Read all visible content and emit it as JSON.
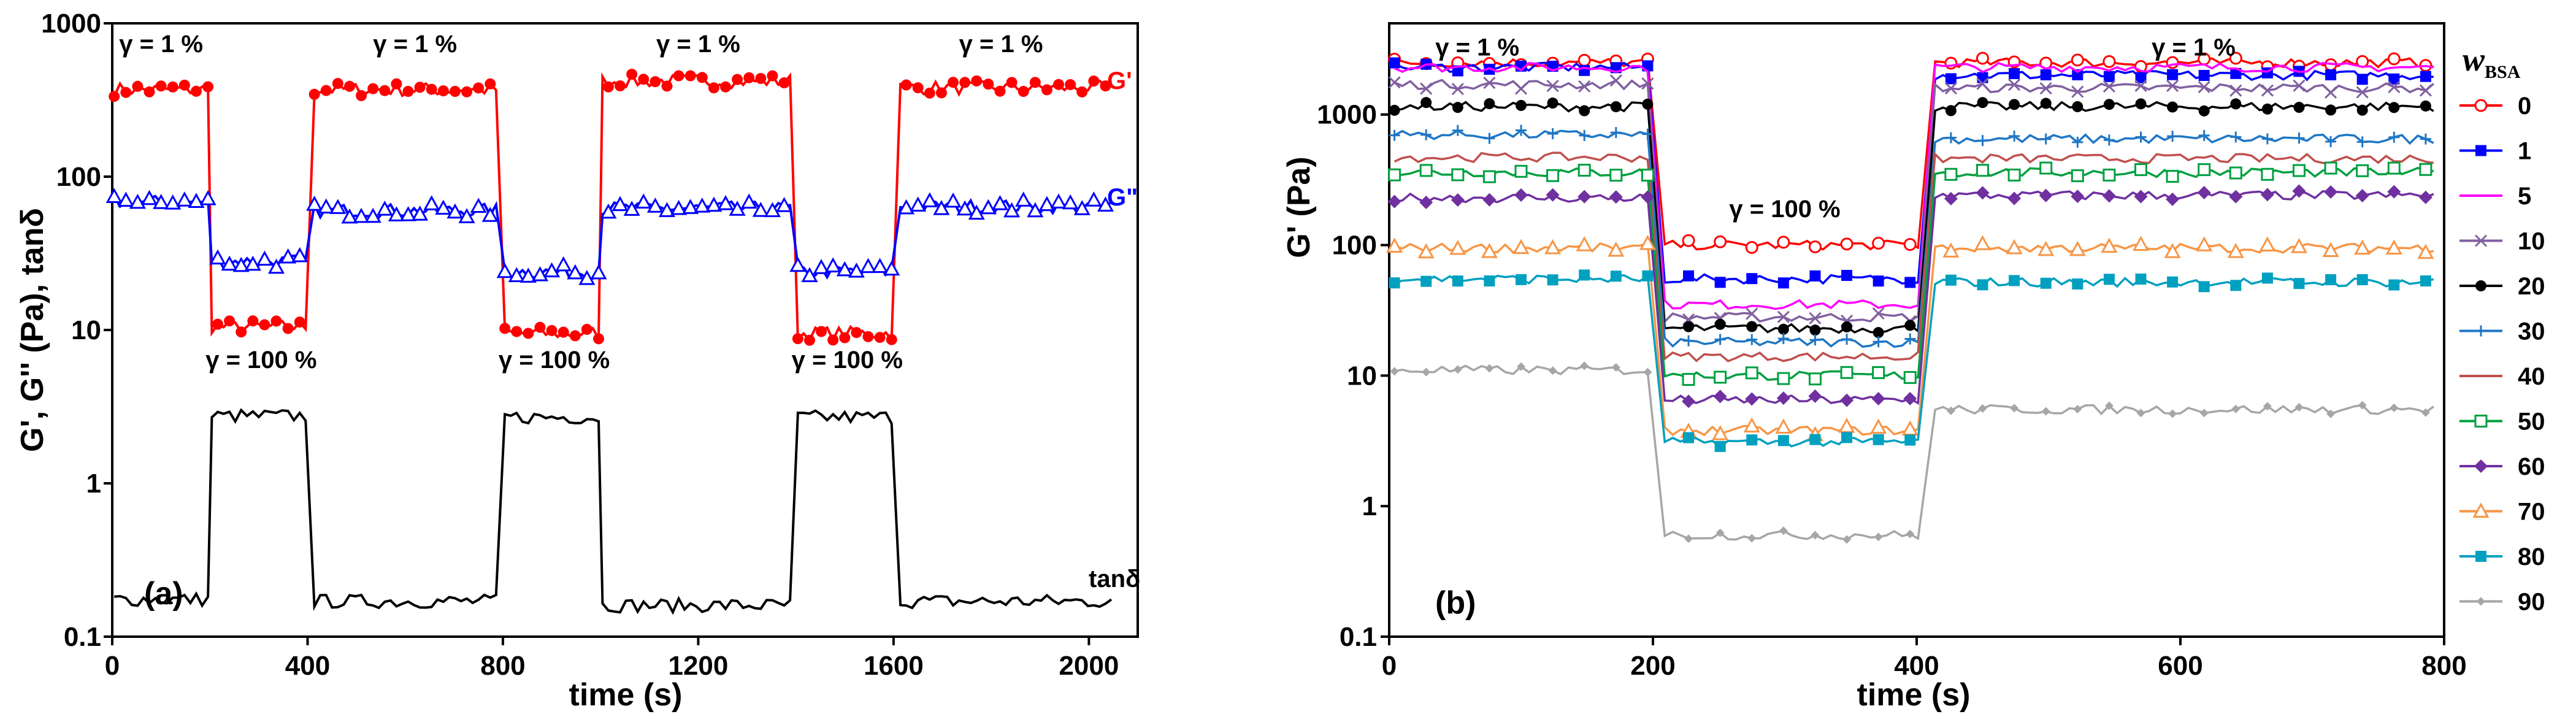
{
  "chart_data": [
    {
      "id": "a",
      "type": "line",
      "panel_label": "(a)",
      "xlabel": "time (s)",
      "ylabel": "G', G'' (Pa), tanδ",
      "xlim": [
        0,
        2100
      ],
      "ylim": [
        0.1,
        1000
      ],
      "yscale": "log",
      "xticks": [
        0,
        400,
        800,
        1200,
        1600,
        2000
      ],
      "xtick_labels": [
        "0",
        "400",
        "800",
        "1200",
        "1600",
        "2000"
      ],
      "yticks": [
        0.1,
        1,
        10,
        100,
        1000
      ],
      "ytick_labels": [
        "0.1",
        "1",
        "10",
        "100",
        "1000"
      ],
      "segment_breaks": [
        0,
        200,
        410,
        800,
        1000,
        1400,
        1610,
        2050
      ],
      "annotations_low": [
        {
          "text": "γ = 1 %",
          "x": 100
        },
        {
          "text": "γ = 1 %",
          "x": 620
        },
        {
          "text": "γ = 1 %",
          "x": 1200
        },
        {
          "text": "γ = 1 %",
          "x": 1820
        }
      ],
      "annotations_high": [
        {
          "text": "γ = 100 %",
          "x": 305
        },
        {
          "text": "γ = 100 %",
          "x": 905
        },
        {
          "text": "γ = 100 %",
          "x": 1505
        }
      ],
      "series": [
        {
          "name": "G'",
          "label": "G'",
          "color": "#ff0000",
          "marker": "circle",
          "levels": [
            370,
            10.5,
            370,
            9.5,
            420,
            9.5,
            380
          ]
        },
        {
          "name": "G''",
          "label": "G\"",
          "color": "#0000ff",
          "marker": "triangle",
          "levels": [
            68,
            28,
            60,
            24,
            62,
            24,
            64
          ]
        },
        {
          "name": "tanδ",
          "label": "tanδ",
          "color": "#000000",
          "marker": "none",
          "levels": [
            0.175,
            2.75,
            0.17,
            2.7,
            0.16,
            2.7,
            0.17
          ]
        }
      ]
    },
    {
      "id": "b",
      "type": "line",
      "panel_label": "(b)",
      "xlabel": "time (s)",
      "ylabel": "G' (Pa)",
      "xlim": [
        0,
        800
      ],
      "ylim": [
        0.1,
        5000
      ],
      "yscale": "log",
      "xticks": [
        0,
        200,
        400,
        600,
        800
      ],
      "xtick_labels": [
        "0",
        "200",
        "400",
        "600",
        "800"
      ],
      "yticks": [
        0.1,
        1,
        10,
        100,
        1000
      ],
      "ytick_labels": [
        "0.1",
        "1",
        "10",
        "100",
        "1000"
      ],
      "segment_breaks": [
        0,
        205,
        410,
        800
      ],
      "annotations": [
        {
          "text": "γ = 1 %",
          "x": 35,
          "y": 3300
        },
        {
          "text": "γ = 1 %",
          "x": 610,
          "y": 3300
        },
        {
          "text": "γ = 100 %",
          "x": 300,
          "y": 190
        }
      ],
      "legend_title": "w",
      "legend_title_sub": "BSA",
      "legend_position": "right",
      "series": [
        {
          "name": "0",
          "color": "#ff0000",
          "marker": "circle-open",
          "levels": [
            2500,
            100,
            2500
          ]
        },
        {
          "name": "1",
          "color": "#0000ff",
          "marker": "square",
          "levels": [
            2300,
            55,
            2000
          ]
        },
        {
          "name": "5",
          "color": "#ff00ff",
          "marker": "line",
          "levels": [
            2300,
            35,
            2300
          ]
        },
        {
          "name": "10",
          "color": "#8060a0",
          "marker": "cross",
          "levels": [
            1700,
            28,
            1600
          ]
        },
        {
          "name": "20",
          "color": "#000000",
          "marker": "circle",
          "levels": [
            1150,
            23,
            1150
          ]
        },
        {
          "name": "30",
          "color": "#1f77c4",
          "marker": "plus",
          "levels": [
            700,
            18,
            650
          ]
        },
        {
          "name": "40",
          "color": "#c0504d",
          "marker": "line",
          "levels": [
            470,
            14,
            460
          ]
        },
        {
          "name": "50",
          "color": "#00a040",
          "marker": "square-open",
          "levels": [
            360,
            10,
            360
          ]
        },
        {
          "name": "60",
          "color": "#7030a0",
          "marker": "diamond",
          "levels": [
            230,
            6.5,
            240
          ]
        },
        {
          "name": "70",
          "color": "#f79646",
          "marker": "triangle-open",
          "levels": [
            95,
            3.8,
            95
          ]
        },
        {
          "name": "80",
          "color": "#00a0c0",
          "marker": "square",
          "levels": [
            55,
            3.1,
            52
          ]
        },
        {
          "name": "90",
          "color": "#a6a6a6",
          "marker": "diamond-small",
          "levels": [
            11,
            0.6,
            5.5
          ]
        }
      ]
    }
  ]
}
